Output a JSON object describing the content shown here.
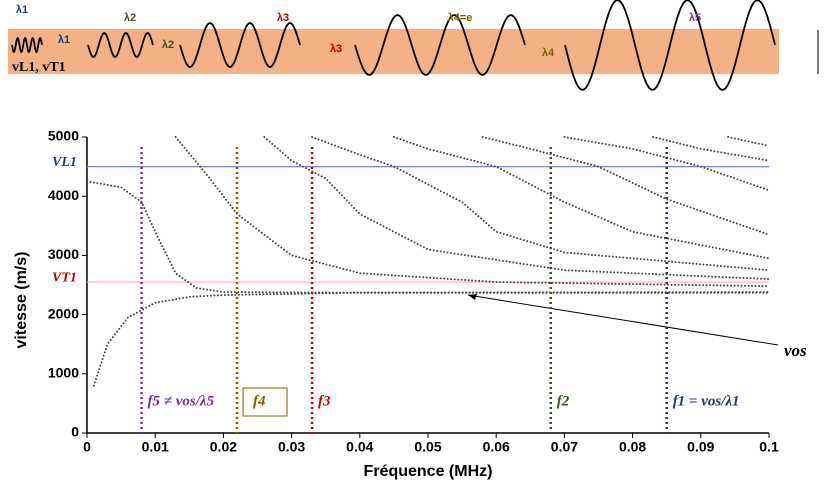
{
  "illustration": {
    "labels": [
      "λ1",
      "λ1",
      "λ2",
      "λ2",
      "λ3",
      "λ3",
      "λ4=e",
      "λ4",
      "λ5"
    ],
    "medium": "vL1, vT1"
  },
  "chart_data": {
    "type": "line",
    "x_label": "Fréquence (MHz)",
    "y_label": "vitesse (m/s)",
    "xlim": [
      0,
      0.1
    ],
    "xticks": [
      0,
      0.01,
      0.02,
      0.03,
      0.04,
      0.05,
      0.06,
      0.07,
      0.08,
      0.09,
      0.1
    ],
    "ylim": [
      0,
      5000
    ],
    "yticks": [
      0,
      1000,
      2000,
      3000,
      4000,
      5000
    ],
    "series": [
      {
        "color": "#444444",
        "x": [
          0.001,
          0.003,
          0.006,
          0.01,
          0.015,
          0.02,
          0.04,
          0.1
        ],
        "values": [
          800,
          1500,
          1950,
          2200,
          2300,
          2330,
          2370,
          2380
        ]
      },
      {
        "color": "#444444",
        "x": [
          0,
          0.005,
          0.008,
          0.01,
          0.013,
          0.016,
          0.02,
          0.04,
          0.1
        ],
        "values": [
          4250,
          4150,
          3900,
          3400,
          2700,
          2450,
          2380,
          2370,
          2370
        ]
      },
      {
        "color": "#444444",
        "x": [
          0.013,
          0.018,
          0.022,
          0.03,
          0.04,
          0.06,
          0.1
        ],
        "values": [
          5000,
          4300,
          3700,
          3000,
          2700,
          2550,
          2480
        ]
      },
      {
        "color": "#444444",
        "x": [
          0.026,
          0.03,
          0.035,
          0.04,
          0.05,
          0.07,
          0.1
        ],
        "values": [
          5000,
          4600,
          4300,
          3700,
          3100,
          2750,
          2600
        ]
      },
      {
        "color": "#444444",
        "x": [
          0.033,
          0.04,
          0.045,
          0.055,
          0.06,
          0.07,
          0.1
        ],
        "values": [
          5000,
          4700,
          4500,
          3900,
          3400,
          3050,
          2750
        ]
      },
      {
        "color": "#444444",
        "x": [
          0.045,
          0.05,
          0.06,
          0.07,
          0.08,
          0.1
        ],
        "values": [
          5000,
          4800,
          4500,
          3900,
          3400,
          2950
        ]
      },
      {
        "color": "#444444",
        "x": [
          0.058,
          0.065,
          0.075,
          0.085,
          0.1
        ],
        "values": [
          5000,
          4800,
          4500,
          3950,
          3350
        ]
      },
      {
        "color": "#444444",
        "x": [
          0.07,
          0.08,
          0.09,
          0.1
        ],
        "values": [
          5000,
          4800,
          4500,
          4100
        ]
      },
      {
        "color": "#444444",
        "x": [
          0.083,
          0.09,
          0.1
        ],
        "values": [
          5000,
          4800,
          4600
        ]
      },
      {
        "color": "#444444",
        "x": [
          0.094,
          0.1
        ],
        "values": [
          5000,
          4850
        ]
      }
    ],
    "hlines": [
      {
        "label": "VL1",
        "value": 4500,
        "color": "#7f7fff",
        "text_color": "#1f3a7a"
      },
      {
        "label": "VT1",
        "value": 2550,
        "color": "#ffb0b0",
        "text_color": "#c00000"
      }
    ],
    "vlines": [
      {
        "value": 0.008,
        "color": "#7030a0",
        "label": "f5 ≠ vos/λ5"
      },
      {
        "value": 0.022,
        "color": "#7f6000",
        "label": "f4",
        "boxed": true
      },
      {
        "value": 0.033,
        "color": "#c00000",
        "label": "f3"
      },
      {
        "value": 0.068,
        "color": "#375623",
        "label": "f2"
      },
      {
        "value": 0.085,
        "color": "#1f3864",
        "label": "f1 = vos/λ1"
      }
    ],
    "annotation": "vos"
  }
}
